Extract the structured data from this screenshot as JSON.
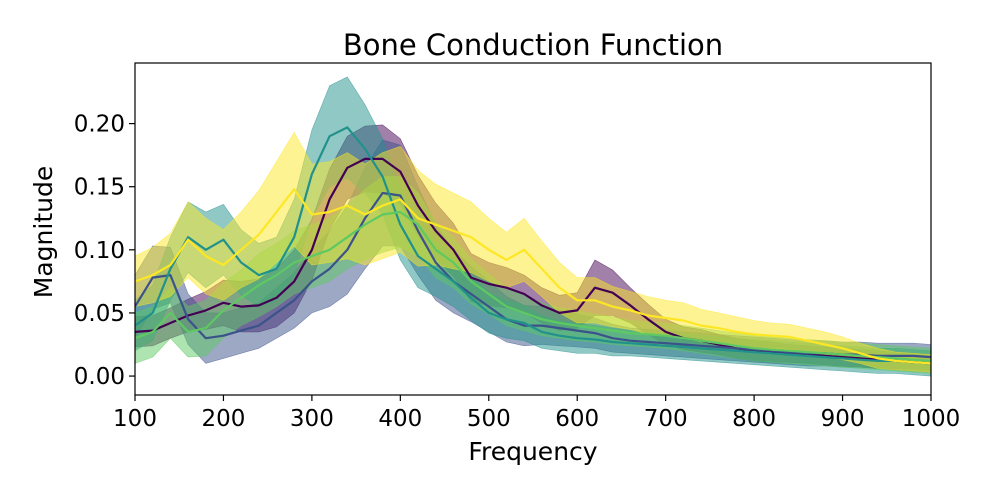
{
  "chart_data": {
    "type": "line",
    "title": "Bone Conduction Function",
    "xlabel": "Frequency",
    "ylabel": "Magnitude",
    "xlim": [
      100,
      1000
    ],
    "ylim": [
      -0.015,
      0.248
    ],
    "xticks": [
      100,
      200,
      300,
      400,
      500,
      600,
      700,
      800,
      900,
      1000
    ],
    "xtick_labels": [
      "100",
      "200",
      "300",
      "400",
      "500",
      "600",
      "700",
      "800",
      "900",
      "1000"
    ],
    "yticks": [
      0.0,
      0.05,
      0.1,
      0.15,
      0.2
    ],
    "ytick_labels": [
      "0.00",
      "0.05",
      "0.10",
      "0.15",
      "0.20"
    ],
    "grid": false,
    "legend": "none",
    "band_opacity": 0.5,
    "x": [
      100,
      120,
      140,
      160,
      180,
      200,
      220,
      240,
      260,
      280,
      300,
      320,
      340,
      360,
      380,
      400,
      420,
      440,
      460,
      480,
      500,
      520,
      540,
      560,
      580,
      600,
      620,
      640,
      660,
      680,
      700,
      720,
      740,
      760,
      780,
      800,
      820,
      840,
      860,
      880,
      900,
      920,
      940,
      960,
      980,
      1000
    ],
    "series": [
      {
        "color": "#440154",
        "values": [
          0.035,
          0.036,
          0.042,
          0.048,
          0.052,
          0.058,
          0.055,
          0.056,
          0.062,
          0.075,
          0.1,
          0.14,
          0.165,
          0.172,
          0.172,
          0.162,
          0.135,
          0.115,
          0.1,
          0.078,
          0.073,
          0.07,
          0.065,
          0.056,
          0.05,
          0.052,
          0.07,
          0.066,
          0.056,
          0.045,
          0.035,
          0.03,
          0.028,
          0.025,
          0.022,
          0.02,
          0.019,
          0.018,
          0.017,
          0.016,
          0.015,
          0.014,
          0.013,
          0.012,
          0.011,
          0.01
        ],
        "spread": [
          0.012,
          0.012,
          0.012,
          0.013,
          0.015,
          0.018,
          0.02,
          0.021,
          0.023,
          0.025,
          0.024,
          0.024,
          0.025,
          0.026,
          0.027,
          0.026,
          0.024,
          0.022,
          0.021,
          0.019,
          0.017,
          0.016,
          0.015,
          0.014,
          0.014,
          0.014,
          0.022,
          0.018,
          0.014,
          0.012,
          0.01,
          0.009,
          0.009,
          0.008,
          0.008,
          0.008,
          0.008,
          0.007,
          0.007,
          0.007,
          0.007,
          0.007,
          0.007,
          0.007,
          0.007,
          0.007
        ]
      },
      {
        "color": "#3b528b",
        "values": [
          0.055,
          0.078,
          0.08,
          0.045,
          0.03,
          0.032,
          0.036,
          0.04,
          0.05,
          0.06,
          0.075,
          0.085,
          0.1,
          0.125,
          0.145,
          0.143,
          0.115,
          0.09,
          0.075,
          0.065,
          0.055,
          0.045,
          0.04,
          0.04,
          0.038,
          0.036,
          0.034,
          0.03,
          0.028,
          0.027,
          0.026,
          0.025,
          0.024,
          0.023,
          0.022,
          0.021,
          0.02,
          0.019,
          0.018,
          0.018,
          0.017,
          0.017,
          0.016,
          0.016,
          0.016,
          0.015
        ],
        "spread": [
          0.025,
          0.025,
          0.022,
          0.02,
          0.02,
          0.018,
          0.018,
          0.018,
          0.02,
          0.022,
          0.025,
          0.03,
          0.035,
          0.04,
          0.042,
          0.04,
          0.035,
          0.03,
          0.025,
          0.022,
          0.02,
          0.018,
          0.016,
          0.015,
          0.014,
          0.013,
          0.012,
          0.011,
          0.01,
          0.01,
          0.01,
          0.01,
          0.01,
          0.01,
          0.01,
          0.01,
          0.01,
          0.01,
          0.01,
          0.01,
          0.01,
          0.01,
          0.01,
          0.01,
          0.01,
          0.01
        ]
      },
      {
        "color": "#21918c",
        "values": [
          0.04,
          0.05,
          0.085,
          0.11,
          0.1,
          0.108,
          0.09,
          0.08,
          0.085,
          0.11,
          0.16,
          0.19,
          0.197,
          0.18,
          0.158,
          0.12,
          0.095,
          0.085,
          0.075,
          0.062,
          0.05,
          0.045,
          0.042,
          0.035,
          0.032,
          0.03,
          0.029,
          0.027,
          0.026,
          0.025,
          0.024,
          0.023,
          0.022,
          0.021,
          0.02,
          0.019,
          0.018,
          0.017,
          0.016,
          0.015,
          0.014,
          0.013,
          0.012,
          0.012,
          0.011,
          0.01
        ],
        "spread": [
          0.02,
          0.022,
          0.025,
          0.028,
          0.03,
          0.028,
          0.026,
          0.025,
          0.025,
          0.03,
          0.035,
          0.04,
          0.04,
          0.035,
          0.03,
          0.028,
          0.025,
          0.022,
          0.02,
          0.018,
          0.016,
          0.015,
          0.014,
          0.013,
          0.012,
          0.012,
          0.011,
          0.011,
          0.01,
          0.01,
          0.01,
          0.01,
          0.01,
          0.01,
          0.01,
          0.01,
          0.01,
          0.01,
          0.01,
          0.01,
          0.01,
          0.01,
          0.01,
          0.01,
          0.01,
          0.01
        ]
      },
      {
        "color": "#5ec962",
        "values": [
          0.03,
          0.035,
          0.05,
          0.035,
          0.038,
          0.052,
          0.062,
          0.072,
          0.08,
          0.09,
          0.095,
          0.1,
          0.11,
          0.12,
          0.128,
          0.13,
          0.12,
          0.1,
          0.09,
          0.075,
          0.065,
          0.055,
          0.05,
          0.045,
          0.042,
          0.04,
          0.038,
          0.036,
          0.034,
          0.033,
          0.032,
          0.03,
          0.028,
          0.026,
          0.024,
          0.022,
          0.021,
          0.02,
          0.019,
          0.018,
          0.017,
          0.016,
          0.015,
          0.014,
          0.013,
          0.012
        ],
        "spread": [
          0.02,
          0.02,
          0.02,
          0.02,
          0.022,
          0.022,
          0.022,
          0.025,
          0.025,
          0.025,
          0.025,
          0.025,
          0.025,
          0.028,
          0.03,
          0.028,
          0.025,
          0.022,
          0.02,
          0.018,
          0.016,
          0.015,
          0.014,
          0.013,
          0.012,
          0.012,
          0.011,
          0.011,
          0.01,
          0.01,
          0.01,
          0.01,
          0.01,
          0.01,
          0.01,
          0.01,
          0.01,
          0.01,
          0.01,
          0.01,
          0.01,
          0.01,
          0.01,
          0.01,
          0.01,
          0.01
        ]
      },
      {
        "color": "#fde725",
        "values": [
          0.075,
          0.08,
          0.088,
          0.108,
          0.095,
          0.088,
          0.1,
          0.112,
          0.13,
          0.148,
          0.128,
          0.13,
          0.135,
          0.128,
          0.135,
          0.14,
          0.125,
          0.12,
          0.115,
          0.11,
          0.1,
          0.092,
          0.1,
          0.085,
          0.07,
          0.06,
          0.06,
          0.055,
          0.052,
          0.048,
          0.046,
          0.044,
          0.04,
          0.038,
          0.035,
          0.033,
          0.032,
          0.031,
          0.028,
          0.025,
          0.022,
          0.018,
          0.014,
          0.012,
          0.011,
          0.01
        ],
        "spread": [
          0.02,
          0.022,
          0.025,
          0.03,
          0.03,
          0.028,
          0.03,
          0.035,
          0.04,
          0.045,
          0.04,
          0.04,
          0.042,
          0.04,
          0.042,
          0.042,
          0.038,
          0.032,
          0.03,
          0.028,
          0.025,
          0.022,
          0.025,
          0.022,
          0.02,
          0.018,
          0.018,
          0.016,
          0.015,
          0.015,
          0.014,
          0.014,
          0.013,
          0.012,
          0.012,
          0.011,
          0.01,
          0.01,
          0.01,
          0.01,
          0.009,
          0.008,
          0.008,
          0.007,
          0.007,
          0.007
        ]
      }
    ]
  }
}
